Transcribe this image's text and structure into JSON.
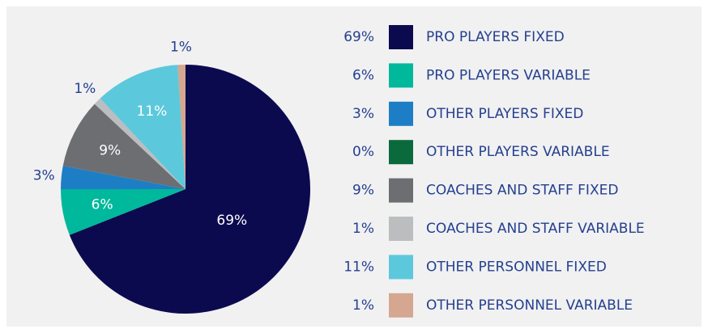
{
  "chart_data": {
    "type": "pie",
    "categories": [
      "PRO PLAYERS FIXED",
      "PRO PLAYERS VARIABLE",
      "OTHER PLAYERS FIXED",
      "OTHER PLAYERS VARIABLE",
      "COACHES AND STAFF FIXED",
      "COACHES AND STAFF VARIABLE",
      "OTHER PERSONNEL FIXED",
      "OTHER PERSONNEL VARIABLE"
    ],
    "values": [
      69,
      6,
      3,
      0,
      9,
      1,
      11,
      1
    ],
    "value_labels": [
      "69%",
      "6%",
      "3%",
      "0%",
      "9%",
      "1%",
      "11%",
      "1%"
    ],
    "colors": [
      "#0c0a4f",
      "#00b89b",
      "#1e7ec5",
      "#0b6a3b",
      "#6d6e71",
      "#bcbdbf",
      "#5cc8dc",
      "#d5a690"
    ],
    "legend": "right"
  }
}
